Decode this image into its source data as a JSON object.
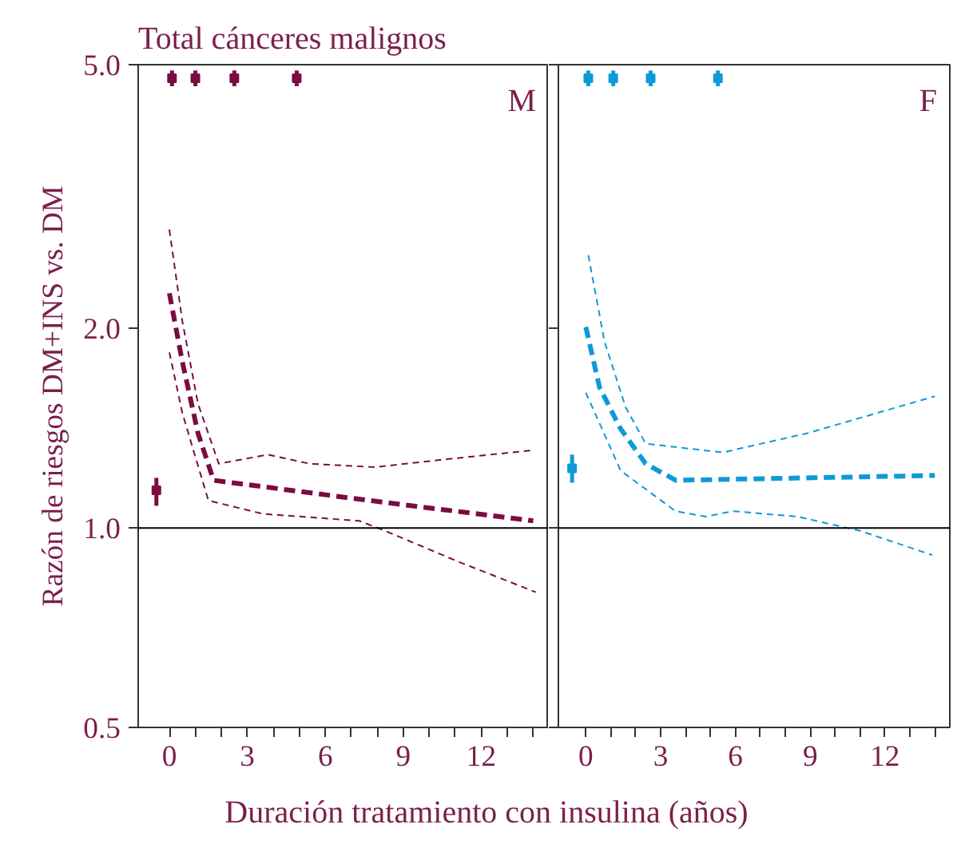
{
  "chart_data": [
    {
      "type": "line",
      "title": "Total cánceres malignos",
      "ylabel": "Razón de riesgos DM+INS vs. DM",
      "xlabel": "Duración tratamiento con insulina (años)",
      "annotations": [
        "M"
      ],
      "log": "y",
      "grid": false,
      "line_style": "dashed",
      "xlim": [
        -1.2,
        14.6
      ],
      "xticks": [
        0,
        {
          "value": 1,
          "label": null
        },
        {
          "value": 2,
          "label": null
        },
        3,
        {
          "value": 4,
          "label": null
        },
        {
          "value": 5,
          "label": null
        },
        6,
        {
          "value": 7,
          "label": null
        },
        {
          "value": 8,
          "label": null
        },
        9,
        {
          "value": 10,
          "label": null
        },
        {
          "value": 11,
          "label": null
        },
        12,
        {
          "value": 13,
          "label": null
        },
        {
          "value": 14,
          "label": null
        }
      ],
      "ylim": [
        0.5,
        5
      ],
      "yticks": [
        {
          "value": 0.5,
          "label": "0.5"
        },
        {
          "value": 1,
          "label": "1.0"
        },
        {
          "value": 2,
          "label": "2.0"
        },
        {
          "value": 5,
          "label": "5.0"
        }
      ],
      "ref_lines": [
        {
          "axis": "y",
          "value": 1,
          "color": "#000000",
          "line_style": "solid"
        }
      ],
      "series": [
        {
          "type": "line",
          "color": "#7b0c42",
          "x": [
            0,
            0.5,
            1.1,
            1.7,
            7.7,
            14.0
          ],
          "values": [
            2.26,
            1.78,
            1.39,
            1.18,
            1.1,
            1.025
          ]
        },
        {
          "type": "line",
          "color": "#7b0c42",
          "x": [
            0,
            0.5,
            1.1,
            1.9,
            3.8,
            5.4,
            7.9,
            10.7,
            14.0
          ],
          "values": [
            2.82,
            2.05,
            1.54,
            1.25,
            1.29,
            1.25,
            1.235,
            1.27,
            1.31
          ]
        },
        {
          "type": "line",
          "color": "#7b0c42",
          "x": [
            0,
            0.5,
            1.5,
            3.6,
            7.3,
            8.3,
            11.1,
            14.1
          ],
          "values": [
            1.84,
            1.49,
            1.1,
            1.05,
            1.025,
            0.99,
            0.89,
            0.8
          ]
        },
        {
          "type": "scatter",
          "marker": "square",
          "color": "#7b0c42",
          "x": [
            -0.5
          ],
          "values": [
            1.14
          ],
          "errors": [
            [
              1.08,
              1.19
            ]
          ]
        },
        {
          "type": "scatter",
          "marker": "square",
          "color": "#7b0c42",
          "x": [
            0.1,
            1.0,
            2.5,
            4.9
          ],
          "values": [
            4.77,
            4.77,
            4.77,
            4.77
          ],
          "errors": [
            [
              4.64,
              4.9
            ],
            [
              4.64,
              4.9
            ],
            [
              4.64,
              4.9
            ],
            [
              4.64,
              4.9
            ]
          ]
        }
      ]
    },
    {
      "type": "line",
      "annotations": [
        "F"
      ],
      "log": "y",
      "grid": false,
      "line_style": "dashed",
      "tick_labels": "x",
      "xlim": [
        -1.1,
        14.6
      ],
      "xticks": [
        0,
        {
          "value": 1,
          "label": null
        },
        {
          "value": 2,
          "label": null
        },
        3,
        {
          "value": 4,
          "label": null
        },
        {
          "value": 5,
          "label": null
        },
        6,
        {
          "value": 7,
          "label": null
        },
        {
          "value": 8,
          "label": null
        },
        9,
        {
          "value": 10,
          "label": null
        },
        {
          "value": 11,
          "label": null
        },
        12,
        {
          "value": 13,
          "label": null
        },
        {
          "value": 14,
          "label": null
        }
      ],
      "ylim": [
        0.5,
        5
      ],
      "yticks": [
        {
          "value": 0.5,
          "label": null
        },
        {
          "value": 1,
          "label": null
        },
        {
          "value": 2,
          "label": null
        },
        {
          "value": 5,
          "label": null
        }
      ],
      "ref_lines": [
        {
          "axis": "y",
          "value": 1,
          "color": "#000000",
          "line_style": "solid"
        }
      ],
      "series": [
        {
          "type": "line",
          "color": "#0e9ad7",
          "x": [
            0,
            0.55,
            1.4,
            2.4,
            3.6,
            8.9,
            14.0
          ],
          "values": [
            2.01,
            1.63,
            1.41,
            1.25,
            1.18,
            1.19,
            1.2
          ]
        },
        {
          "type": "line",
          "color": "#0e9ad7",
          "x": [
            0.1,
            0.75,
            1.6,
            2.4,
            5.5,
            8.9,
            14.0
          ],
          "values": [
            2.58,
            1.91,
            1.52,
            1.34,
            1.3,
            1.39,
            1.58
          ]
        },
        {
          "type": "line",
          "color": "#0e9ad7",
          "x": [
            0,
            1.4,
            3.6,
            4.8,
            5.9,
            8.5,
            11.0,
            13.9
          ],
          "values": [
            1.6,
            1.22,
            1.06,
            1.04,
            1.06,
            1.04,
            0.99,
            0.91
          ]
        },
        {
          "type": "scatter",
          "marker": "square",
          "color": "#0e9ad7",
          "x": [
            -0.55
          ],
          "values": [
            1.23
          ],
          "errors": [
            [
              1.17,
              1.29
            ]
          ]
        },
        {
          "type": "scatter",
          "marker": "square",
          "color": "#0e9ad7",
          "x": [
            0.1,
            1.1,
            2.6,
            5.3
          ],
          "values": [
            4.77,
            4.77,
            4.77,
            4.77
          ],
          "errors": [
            [
              4.64,
              4.9
            ],
            [
              4.64,
              4.9
            ],
            [
              4.64,
              4.9
            ],
            [
              4.64,
              4.9
            ]
          ]
        }
      ]
    }
  ]
}
